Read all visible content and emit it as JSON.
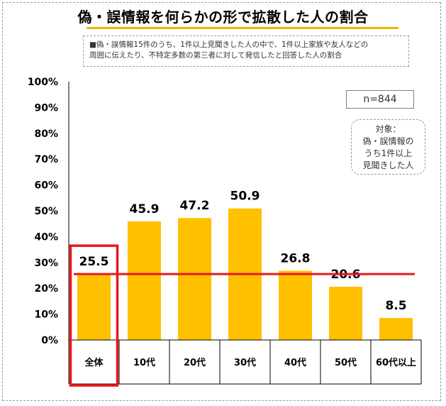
{
  "title": "偽・誤情報を何らかの形で拡散した人の割合",
  "note_lines": [
    "■偽・誤情報15件のうち、1件以上見聞きした人の中で、1件以上家族や友人などの",
    "周囲に伝えたり、不特定多数の第三者に対して発信したと回答した人の割合"
  ],
  "sample_size": "n=844",
  "target_lines": [
    "対象：",
    "偽・誤情報の",
    "うち1件以上",
    "見聞きした人"
  ],
  "colors": {
    "bar": "#FFC000",
    "highlight": "#E8191A",
    "title_underline": "#F0B400"
  },
  "chart_data": {
    "type": "bar",
    "categories": [
      "全体",
      "10代",
      "20代",
      "30代",
      "40代",
      "50代",
      "60代以上"
    ],
    "values": [
      25.5,
      45.9,
      47.2,
      50.9,
      26.8,
      20.6,
      8.5
    ],
    "value_labels": [
      "25.5",
      "45.9",
      "47.2",
      "50.9",
      "26.8",
      "20.6",
      "8.5"
    ],
    "ylim": [
      0,
      100
    ],
    "yticks": [
      0,
      10,
      20,
      30,
      40,
      50,
      60,
      70,
      80,
      90,
      100
    ],
    "ytick_labels": [
      "0%",
      "10%",
      "20%",
      "30%",
      "40%",
      "50%",
      "60%",
      "70%",
      "80%",
      "90%",
      "100%"
    ],
    "reference_line": 25.5,
    "highlight_category": "全体",
    "grid": false
  }
}
